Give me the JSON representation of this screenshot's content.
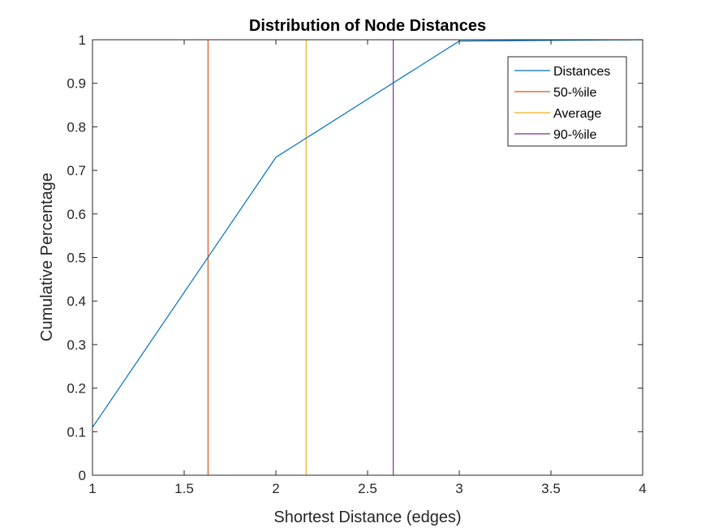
{
  "chart_data": {
    "type": "line",
    "title": "Distribution of Node Distances",
    "xlabel": "Shortest Distance (edges)",
    "ylabel": "Cumulative Percentage",
    "xlim": [
      1,
      4
    ],
    "ylim": [
      0,
      1
    ],
    "xticks": [
      "1",
      "1.5",
      "2",
      "2.5",
      "3",
      "3.5",
      "4"
    ],
    "yticks": [
      "0",
      "0.1",
      "0.2",
      "0.3",
      "0.4",
      "0.5",
      "0.6",
      "0.7",
      "0.8",
      "0.9",
      "1"
    ],
    "grid": false,
    "legend_position": "top-right",
    "series": [
      {
        "name": "Distances",
        "color": "#0072BD",
        "x": [
          1,
          2,
          3,
          4
        ],
        "y": [
          0.11,
          0.73,
          0.997,
          1.0
        ]
      }
    ],
    "reference_lines": [
      {
        "name": "50-%ile",
        "color": "#D95319",
        "x": 1.63
      },
      {
        "name": "Average",
        "color": "#EDB120",
        "x": 2.165
      },
      {
        "name": "90-%ile",
        "color": "#7E2F8E",
        "x": 2.64
      }
    ]
  }
}
